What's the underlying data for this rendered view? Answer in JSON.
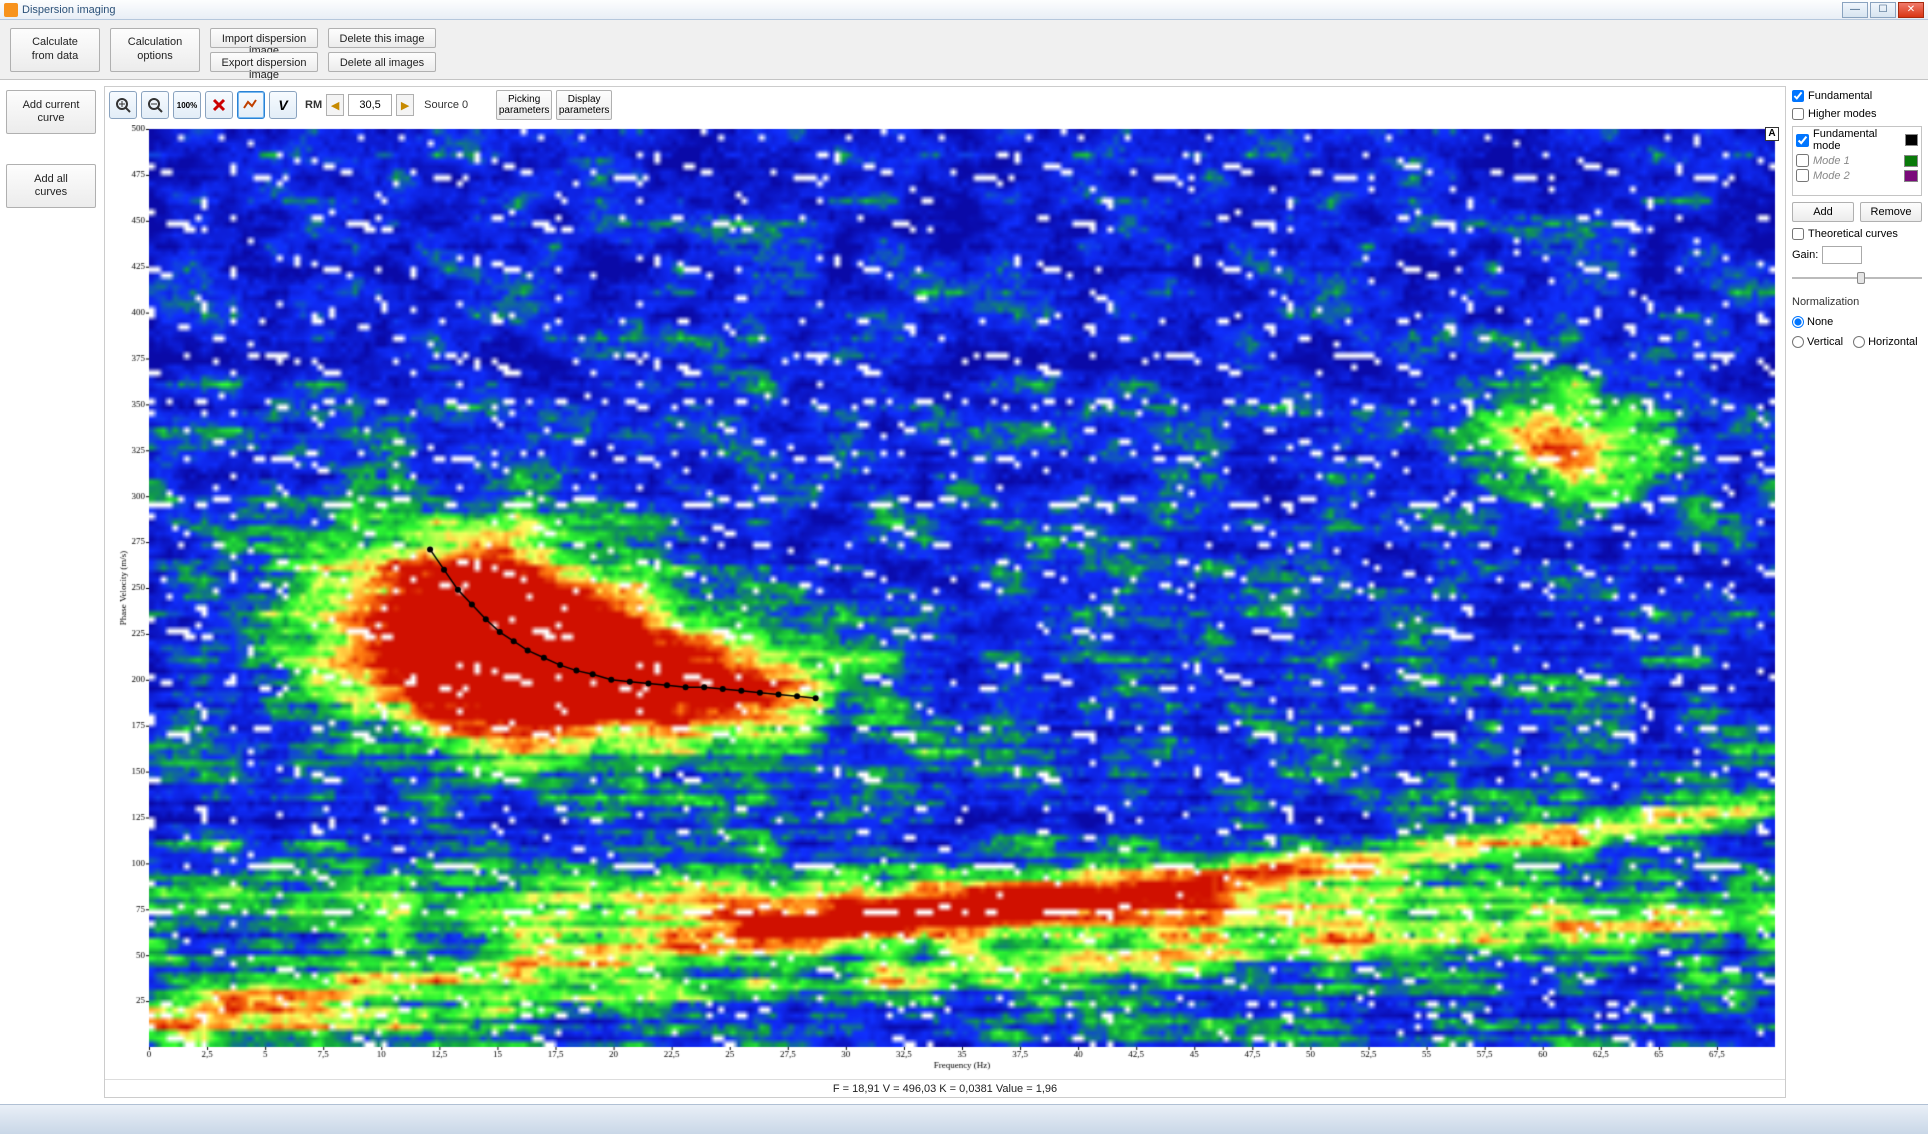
{
  "window": {
    "title": "Dispersion imaging"
  },
  "toolbar": {
    "calc_from_data": "Calculate\nfrom data",
    "calc_options": "Calculation\noptions",
    "import_img": "Import dispersion image",
    "export_img": "Export dispersion image",
    "delete_this": "Delete this image",
    "delete_all": "Delete all images"
  },
  "left": {
    "add_current": "Add current\ncurve",
    "add_all": "Add all\ncurves"
  },
  "plotbar": {
    "rm_label": "RM",
    "rm_value": "30,5",
    "source_label": "Source 0",
    "picking": "Picking\nparameters",
    "display": "Display\nparameters"
  },
  "legend": {
    "fundamental": "Fundamental",
    "higher": "Higher modes",
    "modes": [
      {
        "label": "Fundamental mode",
        "checked": true,
        "color": "#000000",
        "italic": false
      },
      {
        "label": "Mode 1",
        "checked": false,
        "color": "#0a7a0a",
        "italic": true
      },
      {
        "label": "Mode 2",
        "checked": false,
        "color": "#7a0a7a",
        "italic": true
      }
    ],
    "add": "Add",
    "remove": "Remove",
    "theoretical": "Theoretical curves",
    "gain_label": "Gain:",
    "norm_label": "Normalization",
    "norm_none": "None",
    "norm_vert": "Vertical",
    "norm_horz": "Horizontal"
  },
  "status": "F = 18,91 V = 496,03 K = 0,0381 Value = 1,96",
  "chart": {
    "type": "dispersion-image",
    "xlabel": "Frequency (Hz)",
    "ylabel": "Phase Velocity (m/s)",
    "xlim": [
      0,
      70
    ],
    "ylim": [
      0,
      500
    ],
    "xticks": [
      0,
      2.5,
      5,
      7.5,
      10,
      12.5,
      15,
      17.5,
      20,
      22.5,
      25,
      27.5,
      30,
      32.5,
      35,
      37.5,
      40,
      42.5,
      45,
      47.5,
      50,
      52.5,
      55,
      57.5,
      60,
      62.5,
      65,
      67.5
    ],
    "xtick_labels": [
      "0",
      "2,5",
      "5",
      "7,5",
      "10",
      "12,5",
      "15",
      "17,5",
      "20",
      "22,5",
      "25",
      "27,5",
      "30",
      "32,5",
      "35",
      "37,5",
      "40",
      "42,5",
      "45",
      "47,5",
      "50",
      "52,5",
      "55",
      "57,5",
      "60",
      "62,5",
      "65",
      "67,5"
    ],
    "yticks": [
      25,
      50,
      75,
      100,
      125,
      150,
      175,
      200,
      225,
      250,
      275,
      300,
      325,
      350,
      375,
      400,
      425,
      450,
      475,
      500
    ],
    "label_fontsize": 9,
    "tick_fontsize": 9,
    "picked_curve": {
      "color": "#000000",
      "marker": "circle",
      "marker_size": 3,
      "line_width": 1.5,
      "points": [
        [
          12.1,
          271
        ],
        [
          12.7,
          260
        ],
        [
          13.3,
          249
        ],
        [
          13.9,
          241
        ],
        [
          14.5,
          233
        ],
        [
          15.1,
          226
        ],
        [
          15.7,
          221
        ],
        [
          16.3,
          216
        ],
        [
          17.0,
          212
        ],
        [
          17.7,
          208
        ],
        [
          18.4,
          205
        ],
        [
          19.1,
          203
        ],
        [
          19.9,
          200
        ],
        [
          20.7,
          199
        ],
        [
          21.5,
          198
        ],
        [
          22.3,
          197
        ],
        [
          23.1,
          196
        ],
        [
          23.9,
          196
        ],
        [
          24.7,
          195
        ],
        [
          25.5,
          194
        ],
        [
          26.3,
          193
        ],
        [
          27.1,
          192
        ],
        [
          27.9,
          191
        ],
        [
          28.7,
          190
        ]
      ]
    },
    "dispersion_centers": [
      {
        "f": 13.5,
        "v": 240,
        "rf": 6,
        "rv": 50,
        "peak": 1.0
      },
      {
        "f": 17.0,
        "v": 210,
        "rf": 7,
        "rv": 40,
        "peak": 0.95
      },
      {
        "f": 22.0,
        "v": 198,
        "rf": 8,
        "rv": 30,
        "peak": 0.8
      },
      {
        "f": 35.0,
        "v": 75,
        "rf": 25,
        "rv": 20,
        "peak": 0.7
      },
      {
        "f": 61.0,
        "v": 330,
        "rf": 4,
        "rv": 30,
        "peak": 0.7
      }
    ],
    "colormap": [
      {
        "t": 0.0,
        "c": "#0a0aa8"
      },
      {
        "t": 0.25,
        "c": "#1030ff"
      },
      {
        "t": 0.4,
        "c": "#10a040"
      },
      {
        "t": 0.55,
        "c": "#30ff30"
      },
      {
        "t": 0.7,
        "c": "#ffff60"
      },
      {
        "t": 0.85,
        "c": "#ff7a10"
      },
      {
        "t": 1.0,
        "c": "#d01000"
      }
    ],
    "background_color": "#ffffff",
    "noise_seed": 7
  }
}
